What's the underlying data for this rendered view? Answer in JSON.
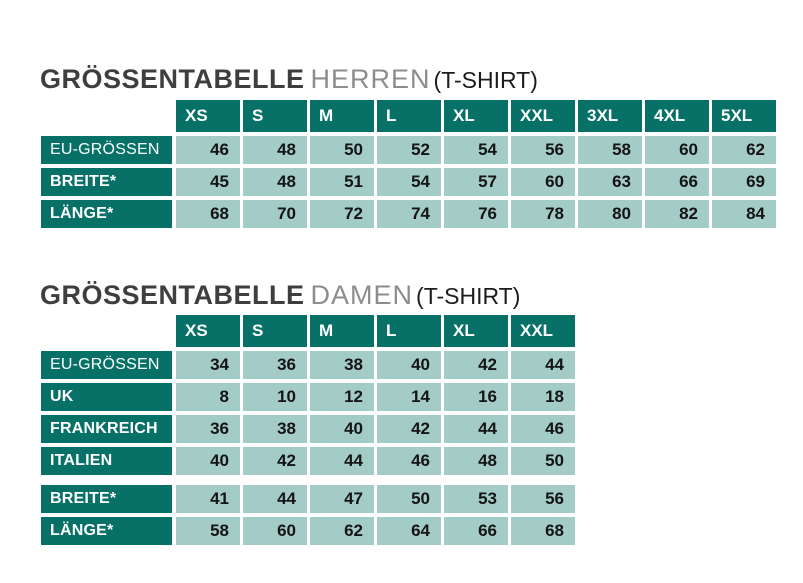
{
  "colors": {
    "teal_dark": "#077167",
    "teal_light": "#a4ccc6",
    "number_text": "#141414",
    "title_main": "#3e3e3e",
    "title_sub": "#8d8d8d",
    "title_suffix": "#1c1c1c",
    "background": "#ffffff"
  },
  "sections": [
    {
      "title": {
        "main": "GRÖSSENTABELLE",
        "sub": "HERREN",
        "suffix": "(T-SHIRT)"
      },
      "table": {
        "sizes": [
          "XS",
          "S",
          "M",
          "L",
          "XL",
          "XXL",
          "3XL",
          "4XL",
          "5XL"
        ],
        "rows": [
          {
            "label": "EU-GRÖSSEN",
            "bold": false,
            "group_break": false,
            "values": [
              46,
              48,
              50,
              52,
              54,
              56,
              58,
              60,
              62
            ]
          },
          {
            "label": "BREITE*",
            "bold": true,
            "group_break": false,
            "values": [
              45,
              48,
              51,
              54,
              57,
              60,
              63,
              66,
              69
            ]
          },
          {
            "label": "LÄNGE*",
            "bold": true,
            "group_break": false,
            "values": [
              68,
              70,
              72,
              74,
              76,
              78,
              80,
              82,
              84
            ]
          }
        ]
      }
    },
    {
      "title": {
        "main": "GRÖSSENTABELLE",
        "sub": "DAMEN",
        "suffix": "(T-SHIRT)"
      },
      "table": {
        "sizes": [
          "XS",
          "S",
          "M",
          "L",
          "XL",
          "XXL"
        ],
        "rows": [
          {
            "label": "EU-GRÖSSEN",
            "bold": false,
            "group_break": false,
            "values": [
              34,
              36,
              38,
              40,
              42,
              44
            ]
          },
          {
            "label": "UK",
            "bold": true,
            "group_break": false,
            "values": [
              8,
              10,
              12,
              14,
              16,
              18
            ]
          },
          {
            "label": "FRANKREICH",
            "bold": true,
            "group_break": false,
            "values": [
              36,
              38,
              40,
              42,
              44,
              46
            ]
          },
          {
            "label": "ITALIEN",
            "bold": true,
            "group_break": false,
            "values": [
              40,
              42,
              44,
              46,
              48,
              50
            ]
          },
          {
            "label": "BREITE*",
            "bold": true,
            "group_break": true,
            "values": [
              41,
              44,
              47,
              50,
              53,
              56
            ]
          },
          {
            "label": "LÄNGE*",
            "bold": true,
            "group_break": false,
            "values": [
              58,
              60,
              62,
              64,
              66,
              68
            ]
          }
        ]
      }
    }
  ]
}
